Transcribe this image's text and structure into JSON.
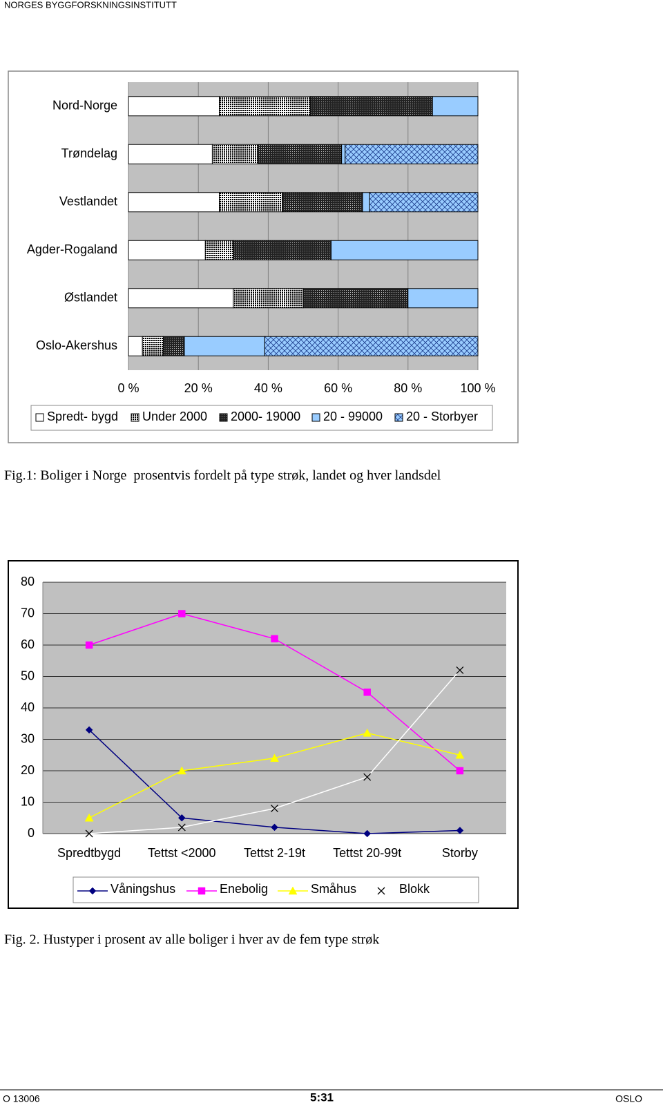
{
  "header": {
    "org": "NORGES BYGGFORSKNINGSINSTITUTT"
  },
  "chart_data": [
    {
      "type": "bar",
      "horizontal": true,
      "stacked": true,
      "categories": [
        "Nord-Norge",
        "Trøndelag",
        "Vestlandet",
        "Agder-Rogaland",
        "Østlandet",
        "Oslo-Akershus"
      ],
      "series": [
        {
          "name": "Spredt- bygd",
          "color": "#ffffff",
          "pattern": "none",
          "values": [
            26,
            24,
            26,
            22,
            30,
            4
          ]
        },
        {
          "name": "Under 2000",
          "color": "#000000",
          "pattern": "dots-dense",
          "values": [
            26,
            13,
            18,
            8,
            20,
            6
          ]
        },
        {
          "name": "2000- 19000",
          "color": "#505050",
          "pattern": "dots",
          "values": [
            35,
            24,
            23,
            28,
            30,
            6
          ]
        },
        {
          "name": "20 - 99000",
          "color": "#99ccff",
          "pattern": "none",
          "values": [
            13,
            1,
            2,
            42,
            20,
            23
          ]
        },
        {
          "name": "20 - Storbyer",
          "color": "#99ccff",
          "pattern": "crosshatch",
          "values": [
            0,
            38,
            31,
            0,
            0,
            61
          ]
        }
      ],
      "xlim": [
        0,
        100
      ],
      "xticks": [
        {
          "value": 0,
          "label": "0 %"
        },
        {
          "value": 20,
          "label": "20 %"
        },
        {
          "value": 40,
          "label": "40 %"
        },
        {
          "value": 60,
          "label": "60 %"
        },
        {
          "value": 80,
          "label": "80 %"
        },
        {
          "value": 100,
          "label": "100 %"
        }
      ],
      "grid": true,
      "legend": "bottom"
    },
    {
      "type": "line",
      "categories": [
        "Spredtbygd",
        "Tettst <2000",
        "Tettst 2-19t",
        "Tettst 20-99t",
        "Storby"
      ],
      "series": [
        {
          "name": "Våningshus",
          "color": "#000080",
          "marker": "diamond",
          "marker_color": "#000080",
          "values": [
            33,
            5,
            2,
            0,
            1
          ]
        },
        {
          "name": "Enebolig",
          "color": "#ff00ff",
          "marker": "square",
          "marker_color": "#ff00ff",
          "values": [
            60,
            70,
            62,
            45,
            20
          ]
        },
        {
          "name": "Småhus",
          "color": "#ffff00",
          "marker": "triangle",
          "marker_color": "#ffff00",
          "values": [
            5,
            20,
            24,
            32,
            25
          ]
        },
        {
          "name": "Blokk",
          "color": "#ffffff",
          "marker": "x",
          "marker_color": "#000000",
          "values": [
            0,
            2,
            8,
            18,
            52
          ]
        }
      ],
      "ylim": [
        0,
        80
      ],
      "yticks": [
        0,
        10,
        20,
        30,
        40,
        50,
        60,
        70,
        80
      ],
      "grid": true,
      "legend": "bottom"
    }
  ],
  "captions": [
    "Fig.1: Boliger i Norge  prosentvis fordelt på type strøk, landet og hver landsdel",
    "Fig. 2. Hustyper i prosent av alle boliger i hver av de fem type strøk"
  ],
  "footer": {
    "left": "O 13006",
    "center": "5:31",
    "right": "OSLO"
  }
}
